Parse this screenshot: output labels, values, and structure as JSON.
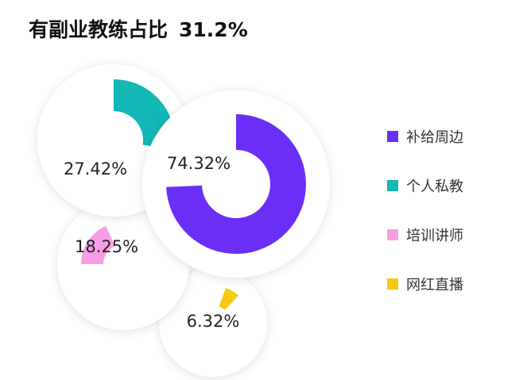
{
  "title": {
    "main": "有副业教练占比",
    "value": "31.2%"
  },
  "colors": {
    "purple": "#6a2ff7",
    "teal": "#13b7b5",
    "pink": "#f79ee7",
    "yellow": "#f6c914"
  },
  "chart_data": {
    "type": "pie",
    "title": "有副业教练占比 31.2%",
    "categories": [
      "补给周边",
      "个人私教",
      "培训讲师",
      "网红直播"
    ],
    "values": [
      74.32,
      27.42,
      18.25,
      6.32
    ],
    "labels": [
      "74.32%",
      "27.42%",
      "18.25%",
      "6.32%"
    ],
    "legend": "right"
  }
}
